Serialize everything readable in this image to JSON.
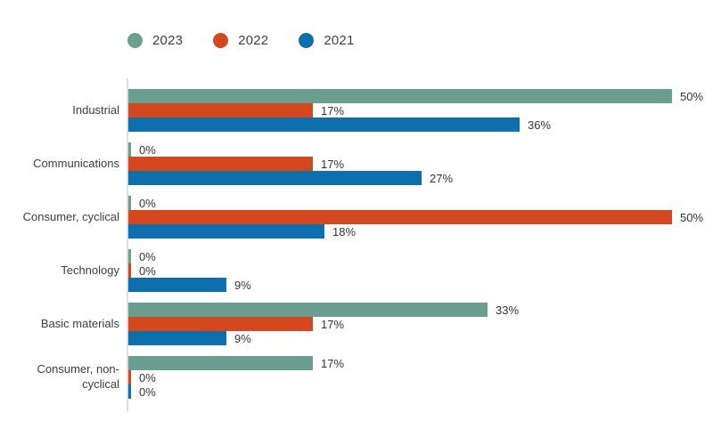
{
  "legend": {
    "position": "top",
    "items": [
      {
        "label": "2023",
        "color": "#6A9F90"
      },
      {
        "label": "2022",
        "color": "#D5471D"
      },
      {
        "label": "2021",
        "color": "#0C70AE"
      }
    ]
  },
  "colors": {
    "series_2023": "#6A9F90",
    "series_2022": "#D5471D",
    "series_2021": "#0C70AE",
    "axis_line": "#dcdcdc",
    "label_text": "#3c3c3c",
    "value_text": "#333333"
  },
  "chart_data": {
    "type": "bar",
    "orientation": "horizontal",
    "title": "",
    "xlabel": "",
    "ylabel": "",
    "xlim": [
      0,
      50
    ],
    "grid": false,
    "legend_position": "top",
    "value_suffix": "%",
    "categories": [
      "Industrial",
      "Communications",
      "Consumer, cyclical",
      "Technology",
      "Basic materials",
      "Consumer, non-cyclical"
    ],
    "series": [
      {
        "name": "2023",
        "color": "#6A9F90",
        "values": [
          50,
          0,
          0,
          0,
          33,
          17
        ],
        "labels": [
          "50%",
          "0%",
          "0%",
          "0%",
          "33%",
          "17%"
        ]
      },
      {
        "name": "2022",
        "color": "#D5471D",
        "values": [
          17,
          17,
          50,
          0,
          17,
          0
        ],
        "labels": [
          "17%",
          "17%",
          "50%",
          "0%",
          "17%",
          "0%"
        ]
      },
      {
        "name": "2021",
        "color": "#0C70AE",
        "values": [
          36,
          27,
          18,
          9,
          9,
          0
        ],
        "labels": [
          "36%",
          "27%",
          "18%",
          "9%",
          "9%",
          "0%"
        ]
      }
    ]
  }
}
